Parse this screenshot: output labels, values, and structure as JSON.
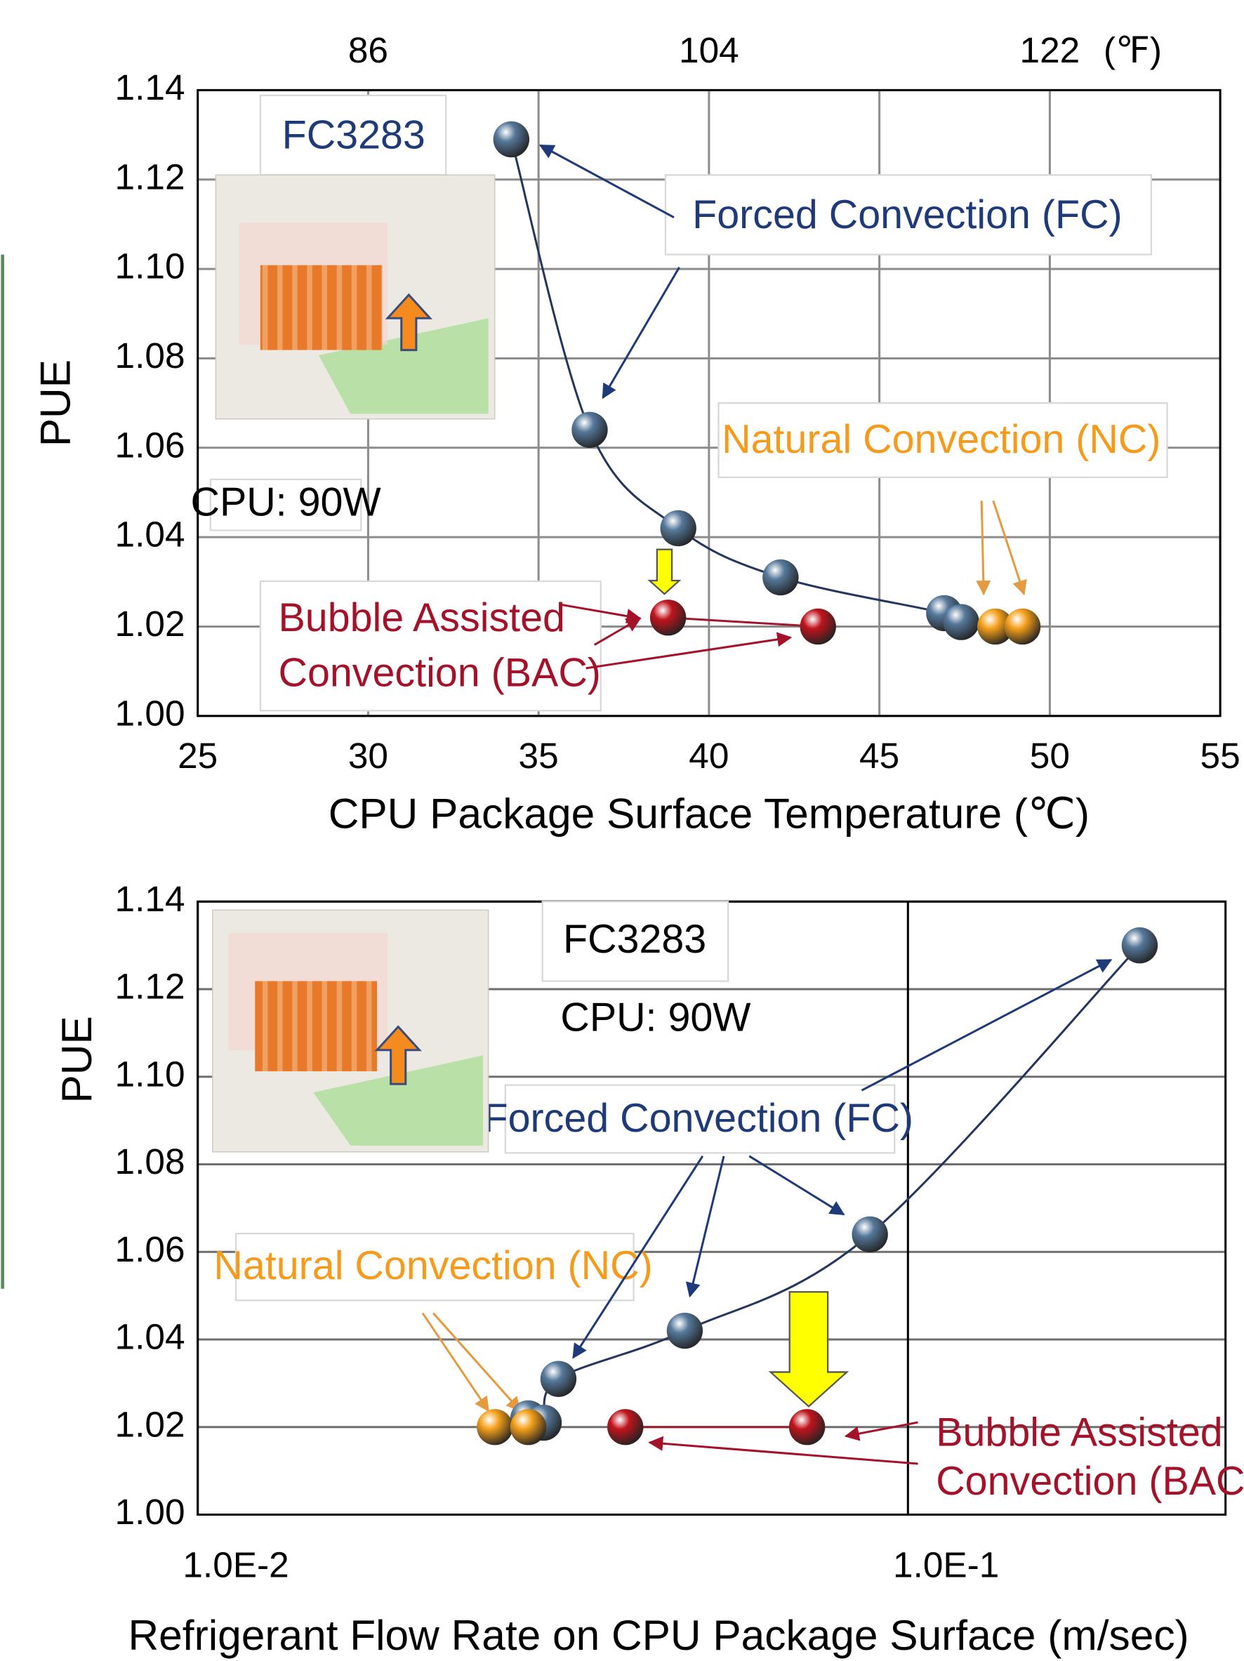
{
  "chart_data": [
    {
      "type": "scatter",
      "xlabel": "CPU Package Surface Temperature (℃)",
      "ylabel": "PUE",
      "xlim": [
        25,
        55
      ],
      "xticks": [
        25,
        30,
        35,
        40,
        45,
        50,
        55
      ],
      "x2lim": [
        77,
        131
      ],
      "x2ticks": [
        86,
        104,
        122
      ],
      "x2label": "(℉)",
      "ylim": [
        1.0,
        1.14
      ],
      "yticks": [
        {
          "value": 1.0,
          "label": "1.00"
        },
        1.02,
        1.04,
        1.06,
        1.08,
        {
          "value": 1.1,
          "label": "1.10"
        },
        1.12,
        1.14
      ],
      "grid": true,
      "grid_color": "#8c8c8c",
      "series": [
        {
          "color": "#55789a",
          "line": true,
          "line_color": "#22365e",
          "x": [
            34.2,
            36.5,
            39.1,
            42.1,
            46.9,
            47.4
          ],
          "values": [
            1.129,
            1.064,
            1.042,
            1.031,
            1.023,
            1.021
          ]
        },
        {
          "color": "#f5a01a",
          "line": false,
          "x": [
            48.4,
            49.2
          ],
          "values": [
            1.02,
            1.02
          ]
        },
        {
          "color": "#c0141c",
          "line": true,
          "line_color": "#9c1a2a",
          "x": [
            38.8,
            43.2
          ],
          "values": [
            1.022,
            1.02
          ]
        }
      ],
      "annotations": [
        {
          "lines": [
            "FC3283"
          ],
          "color": "#1f3a78"
        },
        {
          "lines": [
            "Forced Convection (FC)"
          ],
          "color": "#1f3a78"
        },
        {
          "lines": [
            "Natural Convection (NC)"
          ],
          "color": "#f59a1a"
        },
        {
          "lines": [
            "Bubble Assisted",
            "Convection (BAC)"
          ],
          "color": "#a4122a"
        },
        {
          "lines": [
            "CPU: 90W"
          ],
          "color": "#000000"
        }
      ]
    },
    {
      "type": "scatter",
      "xlabel": "Refrigerant Flow Rate on CPU Package Surface (m/sec)",
      "ylabel": "PUE",
      "xscale": "log",
      "xlim": [
        0.01,
        0.28
      ],
      "xticks": [
        {
          "value": 0.01,
          "label": "1.0E-2"
        },
        {
          "value": 0.1,
          "label": "1.0E-1"
        }
      ],
      "ylim": [
        1.0,
        1.14
      ],
      "yticks": [
        {
          "value": 1.0,
          "label": "1.00"
        },
        1.02,
        1.04,
        1.06,
        1.08,
        {
          "value": 1.1,
          "label": "1.10"
        },
        1.12,
        1.14
      ],
      "grid": true,
      "grid_color": "#6e6e6e",
      "series": [
        {
          "color": "#55789a",
          "line": true,
          "line_color": "#22365e",
          "x": [
            0.0292,
            0.0307,
            0.0322,
            0.0485,
            0.0884,
            0.212
          ],
          "values": [
            1.022,
            1.021,
            1.031,
            1.042,
            1.064,
            1.13
          ]
        },
        {
          "color": "#f5a01a",
          "line": false,
          "x": [
            0.0262,
            0.0292
          ],
          "values": [
            1.02,
            1.02
          ]
        },
        {
          "color": "#c0141c",
          "line": true,
          "line_color": "#9c1a2a",
          "x": [
            0.04,
            0.0721
          ],
          "values": [
            1.02,
            1.02
          ]
        }
      ],
      "annotations": [
        {
          "lines": [
            "FC3283"
          ],
          "color": "#000000"
        },
        {
          "lines": [
            "CPU: 90W"
          ],
          "color": "#000000"
        },
        {
          "lines": [
            "Forced Convection (FC)"
          ],
          "color": "#1f3a78"
        },
        {
          "lines": [
            "Natural Convection (NC)"
          ],
          "color": "#f59a1a"
        },
        {
          "lines": [
            "Bubble Assisted",
            "Convection (BAC)"
          ],
          "color": "#a4122a"
        }
      ]
    }
  ]
}
